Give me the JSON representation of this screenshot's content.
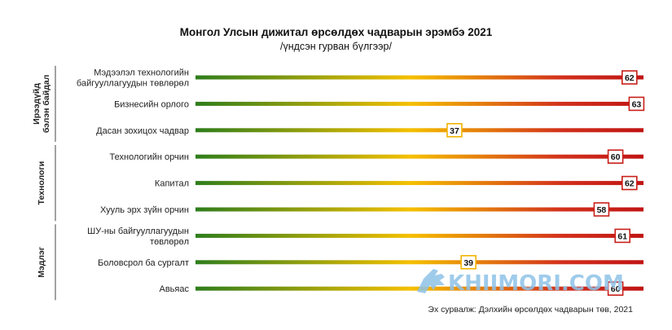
{
  "chart_data": {
    "type": "bar",
    "title": "Монгол Улсын дижитал өрсөлдөх чадварын эрэмбэ 2021",
    "subtitle": "/үндсэн гурван бүлгээр/",
    "source": "Эх сурвалж: Дэлхийн өрсөлдөх чадварын төв, 2021",
    "xlim": [
      0,
      64
    ],
    "groups": [
      {
        "name": "Ирээдүйд\nбэлэн байдал",
        "categories": [
          0,
          1,
          2
        ]
      },
      {
        "name": "Технологи",
        "categories": [
          3,
          4,
          5
        ]
      },
      {
        "name": "Мэдлэг",
        "categories": [
          6,
          7,
          8
        ]
      }
    ],
    "categories": [
      "Мэдээлэл технологийн\nбайгууллагуудын төвлөрөл",
      "Бизнесийн орлого",
      "Дасан зохицох чадвар",
      "Технологийн орчин",
      "Капитал",
      "Хууль эрх зүйн орчин",
      "ШУ-ны байгууллагуудын\nтөвлөрөл",
      "Боловсрол ба сургалт",
      "Авьяас"
    ],
    "values": [
      62,
      63,
      37,
      60,
      62,
      58,
      61,
      39,
      60
    ],
    "colors": {
      "gradient": [
        "#2e7d1c",
        "#f5c000",
        "#d2301c",
        "#c01414"
      ],
      "marker_high": "#c8201a",
      "marker_mid": "#f0b400"
    }
  },
  "watermark": {
    "text": "KHIIMORI.COM",
    "icon": "horse-icon"
  }
}
